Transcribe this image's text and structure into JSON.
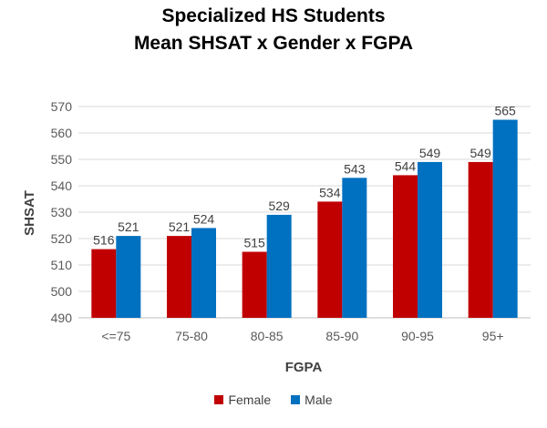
{
  "colors": {
    "female": "#C00000",
    "male": "#0070C0",
    "grid": "#D9D9D9",
    "axis": "#BFBFBF"
  },
  "chart_data": {
    "type": "bar",
    "title": [
      "Specialized HS Students",
      "Mean SHSAT x Gender x FGPA"
    ],
    "xlabel": "FGPA",
    "ylabel": "SHSAT",
    "categories": [
      "<=75",
      "75-80",
      "80-85",
      "85-90",
      "90-95",
      "95+"
    ],
    "series": [
      {
        "name": "Female",
        "values": [
          516,
          521,
          515,
          534,
          544,
          549
        ]
      },
      {
        "name": "Male",
        "values": [
          521,
          524,
          529,
          543,
          549,
          565
        ]
      }
    ],
    "ylim": [
      490,
      570
    ],
    "yticks": [
      490,
      500,
      510,
      520,
      530,
      540,
      550,
      560,
      570
    ],
    "grid": true,
    "legend": "bottom"
  }
}
